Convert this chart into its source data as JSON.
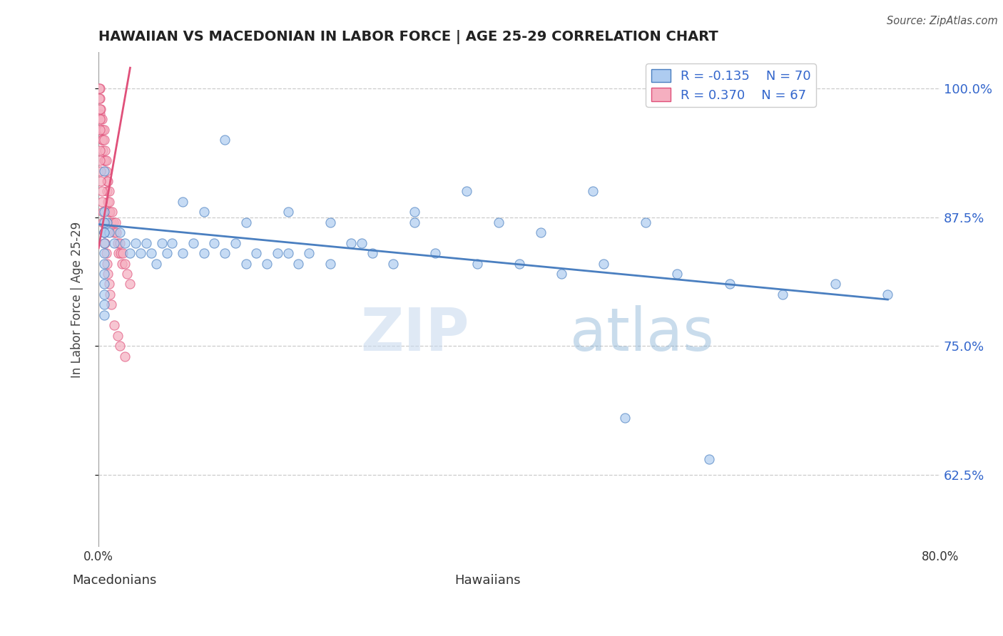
{
  "title": "HAWAIIAN VS MACEDONIAN IN LABOR FORCE | AGE 25-29 CORRELATION CHART",
  "source_text": "Source: ZipAtlas.com",
  "ylabel": "In Labor Force | Age 25-29",
  "xlabel_hawaiians": "Hawaiians",
  "xlabel_macedonians": "Macedonians",
  "xlim": [
    0.0,
    0.8
  ],
  "ylim": [
    0.555,
    1.035
  ],
  "yticks": [
    0.625,
    0.75,
    0.875,
    1.0
  ],
  "ytick_labels": [
    "62.5%",
    "75.0%",
    "87.5%",
    "100.0%"
  ],
  "xtick_positions": [
    0.0,
    0.1,
    0.2,
    0.3,
    0.4,
    0.5,
    0.6,
    0.7,
    0.8
  ],
  "xtick_labels": [
    "0.0%",
    "",
    "",
    "",
    "",
    "",
    "",
    "",
    "80.0%"
  ],
  "legend_r_hawaiians": "-0.135",
  "legend_n_hawaiians": "70",
  "legend_r_macedonians": "0.370",
  "legend_n_macedonians": "67",
  "color_hawaiian": "#aeccf0",
  "color_macedonian": "#f5afc0",
  "trendline_hawaiian": "#4a7fc0",
  "trendline_macedonian": "#e0507a",
  "watermark_zip": "ZIP",
  "watermark_atlas": "atlas",
  "hawaiian_x": [
    0.005,
    0.35,
    0.005,
    0.12,
    0.22,
    0.3,
    0.38,
    0.42,
    0.47,
    0.52,
    0.005,
    0.08,
    0.1,
    0.14,
    0.18,
    0.25,
    0.3,
    0.008,
    0.01,
    0.015,
    0.02,
    0.025,
    0.03,
    0.035,
    0.04,
    0.045,
    0.05,
    0.055,
    0.06,
    0.065,
    0.07,
    0.08,
    0.09,
    0.1,
    0.11,
    0.12,
    0.13,
    0.14,
    0.15,
    0.16,
    0.17,
    0.18,
    0.19,
    0.2,
    0.22,
    0.24,
    0.26,
    0.28,
    0.32,
    0.36,
    0.4,
    0.44,
    0.48,
    0.55,
    0.6,
    0.65,
    0.7,
    0.75,
    0.5,
    0.58,
    0.005,
    0.005,
    0.005,
    0.005,
    0.005,
    0.005,
    0.005,
    0.005,
    0.005,
    0.005
  ],
  "hawaiian_y": [
    0.92,
    0.9,
    0.88,
    0.95,
    0.87,
    0.88,
    0.87,
    0.86,
    0.9,
    0.87,
    0.86,
    0.89,
    0.88,
    0.87,
    0.88,
    0.85,
    0.87,
    0.87,
    0.86,
    0.85,
    0.86,
    0.85,
    0.84,
    0.85,
    0.84,
    0.85,
    0.84,
    0.83,
    0.85,
    0.84,
    0.85,
    0.84,
    0.85,
    0.84,
    0.85,
    0.84,
    0.85,
    0.83,
    0.84,
    0.83,
    0.84,
    0.84,
    0.83,
    0.84,
    0.83,
    0.85,
    0.84,
    0.83,
    0.84,
    0.83,
    0.83,
    0.82,
    0.83,
    0.82,
    0.81,
    0.8,
    0.81,
    0.8,
    0.68,
    0.64,
    0.87,
    0.86,
    0.85,
    0.84,
    0.83,
    0.82,
    0.81,
    0.8,
    0.79,
    0.78
  ],
  "macedonian_x": [
    0.001,
    0.001,
    0.002,
    0.002,
    0.003,
    0.003,
    0.003,
    0.004,
    0.004,
    0.004,
    0.005,
    0.005,
    0.005,
    0.006,
    0.006,
    0.007,
    0.007,
    0.008,
    0.008,
    0.009,
    0.009,
    0.01,
    0.01,
    0.01,
    0.011,
    0.012,
    0.013,
    0.014,
    0.015,
    0.016,
    0.017,
    0.018,
    0.019,
    0.02,
    0.021,
    0.022,
    0.023,
    0.025,
    0.027,
    0.03,
    0.001,
    0.001,
    0.001,
    0.001,
    0.001,
    0.001,
    0.001,
    0.0005,
    0.0005,
    0.002,
    0.002,
    0.003,
    0.003,
    0.004,
    0.004,
    0.005,
    0.006,
    0.007,
    0.008,
    0.009,
    0.01,
    0.011,
    0.012,
    0.015,
    0.018,
    0.02,
    0.025
  ],
  "macedonian_y": [
    0.975,
    0.96,
    0.98,
    0.97,
    0.96,
    0.95,
    0.97,
    0.96,
    0.95,
    0.94,
    0.96,
    0.95,
    0.93,
    0.94,
    0.93,
    0.92,
    0.93,
    0.91,
    0.9,
    0.91,
    0.89,
    0.9,
    0.89,
    0.88,
    0.88,
    0.87,
    0.88,
    0.87,
    0.86,
    0.87,
    0.86,
    0.85,
    0.84,
    0.85,
    0.84,
    0.83,
    0.84,
    0.83,
    0.82,
    0.81,
    1.0,
    0.99,
    0.98,
    0.97,
    0.96,
    0.94,
    0.93,
    1.0,
    0.99,
    0.92,
    0.91,
    0.9,
    0.89,
    0.88,
    0.87,
    0.86,
    0.85,
    0.84,
    0.83,
    0.82,
    0.81,
    0.8,
    0.79,
    0.77,
    0.76,
    0.75,
    0.74
  ],
  "macedonian_trendline_x": [
    0.0,
    0.03
  ],
  "macedonian_trendline_y": [
    0.845,
    1.02
  ],
  "hawaiian_trendline_x": [
    0.0,
    0.75
  ],
  "hawaiian_trendline_y": [
    0.868,
    0.795
  ]
}
